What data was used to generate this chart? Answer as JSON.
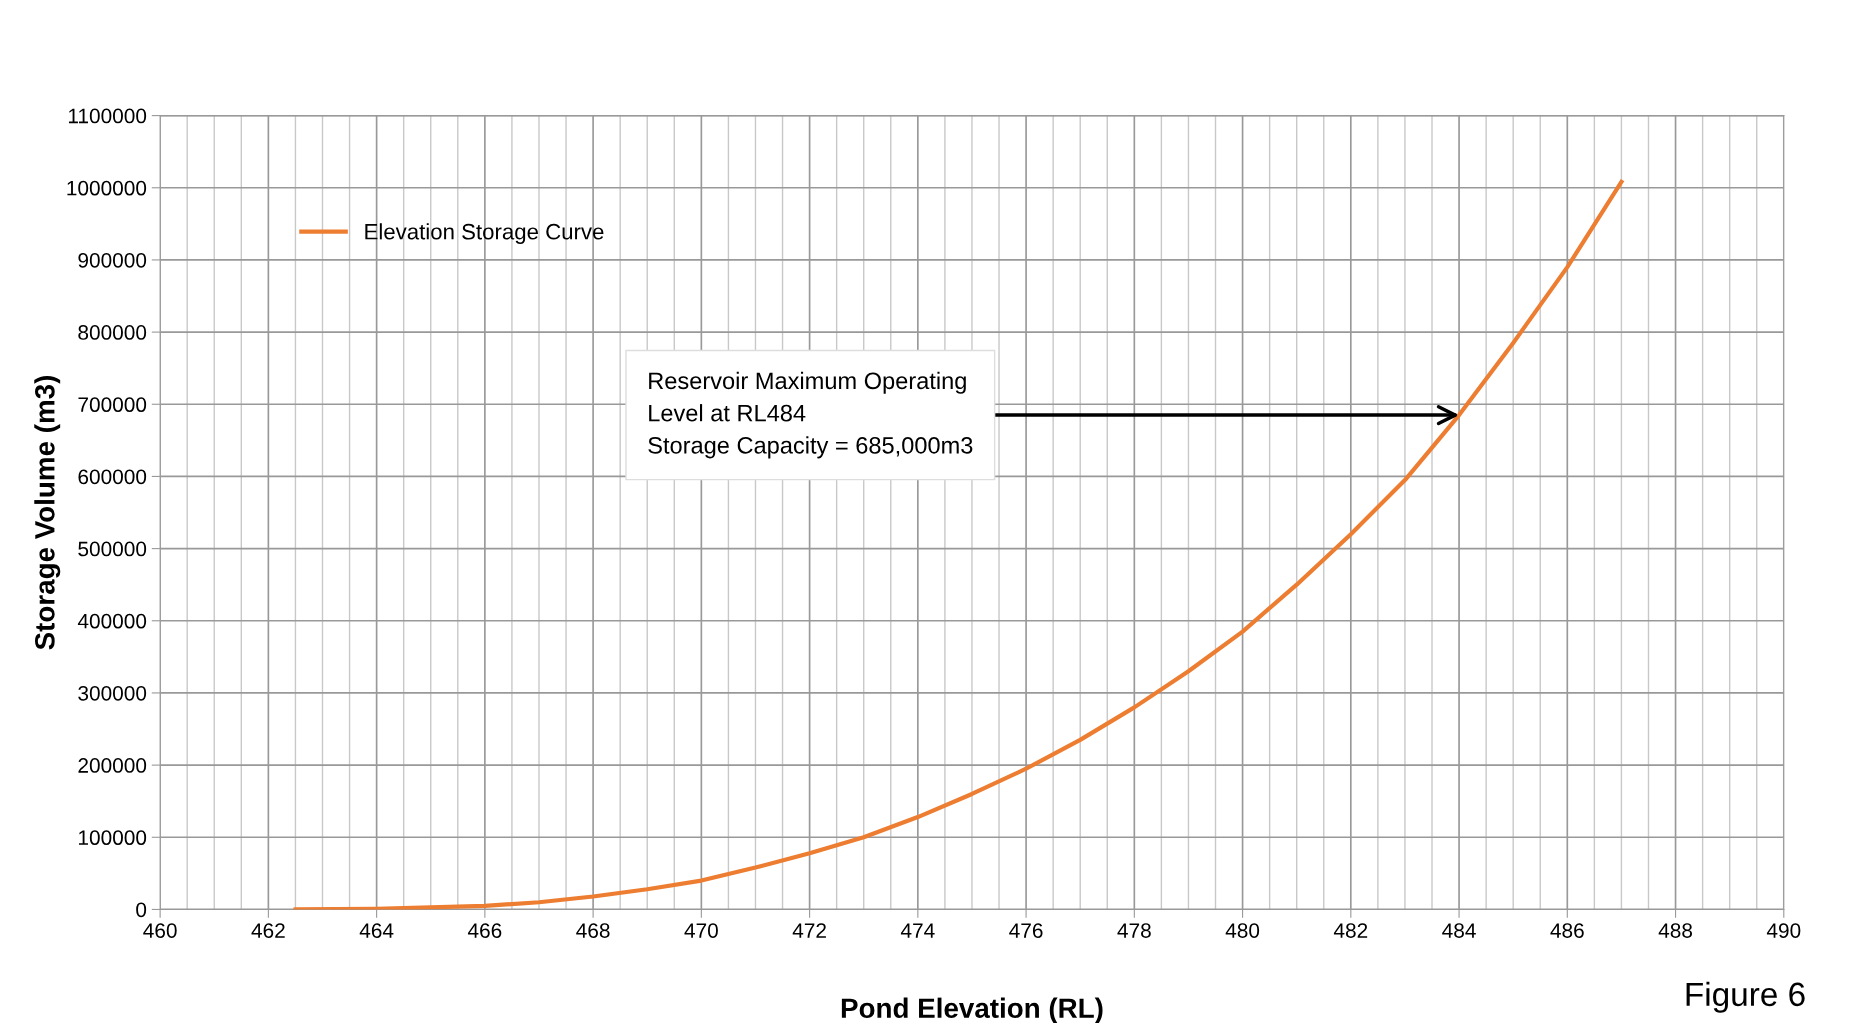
{
  "chart_data": {
    "type": "line",
    "xlabel": "Pond Elevation (RL)",
    "ylabel": "Storage Volume (m3)",
    "series": [
      {
        "name": "Elevation Storage Curve",
        "color": "#ed7d31",
        "x": [
          462.5,
          464,
          466,
          467,
          468,
          469,
          470,
          471,
          472,
          473,
          474,
          475,
          476,
          477,
          478,
          479,
          480,
          481,
          482,
          483,
          484,
          485,
          486,
          487
        ],
        "values": [
          0,
          1000,
          5000,
          10000,
          18000,
          28000,
          40000,
          58000,
          78000,
          100000,
          128000,
          160000,
          195000,
          235000,
          280000,
          330000,
          385000,
          450000,
          520000,
          595000,
          685000,
          785000,
          890000,
          1008000
        ]
      }
    ],
    "xlim": [
      460,
      490
    ],
    "xticks": [
      460,
      462,
      464,
      466,
      468,
      470,
      472,
      474,
      476,
      478,
      480,
      482,
      484,
      486,
      488,
      490
    ],
    "ylim": [
      0,
      1100000
    ],
    "yticks": [
      0,
      100000,
      200000,
      300000,
      400000,
      500000,
      600000,
      700000,
      800000,
      900000,
      1000000,
      1100000
    ],
    "grid": true,
    "legend": "top left",
    "marker": "none",
    "line_style": "solid",
    "annotations": [
      {
        "text": "Reservoir Maximum Operating\nLevel at RL484\nStorage Capacity = 685,000m3",
        "x": 484,
        "y": 685000
      },
      "Figure 6"
    ]
  }
}
